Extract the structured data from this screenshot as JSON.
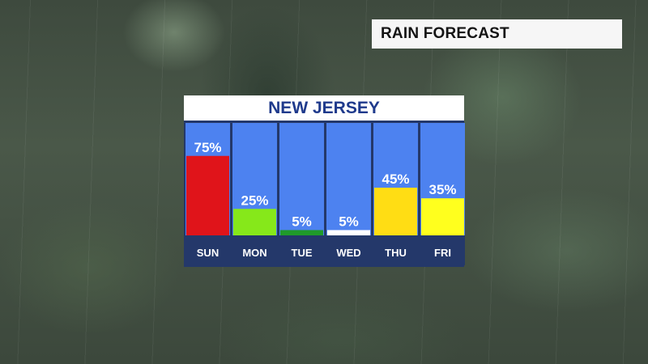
{
  "header": {
    "label": "RAIN FORECAST"
  },
  "chart_data": {
    "type": "bar",
    "title": "NEW JERSEY",
    "categories": [
      "SUN",
      "MON",
      "TUE",
      "WED",
      "THU",
      "FRI"
    ],
    "values": [
      75,
      25,
      5,
      5,
      45,
      35
    ],
    "value_labels": [
      "75%",
      "25%",
      "5%",
      "5%",
      "45%",
      "35%"
    ],
    "bar_colors": [
      "#e0141a",
      "#86e81a",
      "#1f9a2a",
      "#ffffff",
      "#ffdd14",
      "#ffff1e"
    ],
    "ylim": [
      0,
      100
    ],
    "unit": "%",
    "grid": false,
    "legend": "none"
  },
  "colors": {
    "column_background": "#4d82f0",
    "label_strip": "#24386a",
    "title_text": "#1f3a8c"
  }
}
